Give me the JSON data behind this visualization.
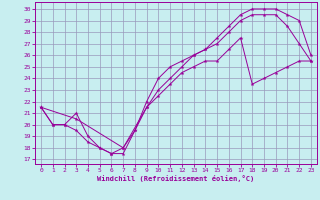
{
  "bg_color": "#c8eef0",
  "grid_color": "#9999bb",
  "line_color": "#990099",
  "xlabel": "Windchill (Refroidissement éolien,°C)",
  "xlim_min": -0.5,
  "xlim_max": 23.5,
  "ylim_min": 16.6,
  "ylim_max": 30.6,
  "xticks": [
    0,
    1,
    2,
    3,
    4,
    5,
    6,
    7,
    8,
    9,
    10,
    11,
    12,
    13,
    14,
    15,
    16,
    17,
    18,
    19,
    20,
    21,
    22,
    23
  ],
  "yticks": [
    17,
    18,
    19,
    20,
    21,
    22,
    23,
    24,
    25,
    26,
    27,
    28,
    29,
    30
  ],
  "line1_x": [
    0,
    1,
    2,
    3,
    4,
    5,
    6,
    7,
    8,
    9,
    10,
    11,
    12,
    13,
    14,
    15,
    16,
    17,
    18,
    19,
    20,
    21,
    22,
    23
  ],
  "line1_y": [
    21.5,
    20.0,
    20.0,
    19.5,
    18.5,
    18.0,
    17.5,
    17.5,
    19.5,
    22.0,
    24.0,
    25.0,
    25.5,
    26.0,
    26.5,
    27.5,
    28.5,
    29.5,
    30.0,
    30.0,
    30.0,
    29.5,
    29.0,
    26.0
  ],
  "line2_x": [
    0,
    1,
    2,
    3,
    4,
    5,
    6,
    7,
    8,
    9,
    10,
    11,
    12,
    13,
    14,
    15,
    16,
    17,
    18,
    19,
    20,
    21,
    22,
    23
  ],
  "line2_y": [
    21.5,
    20.0,
    20.0,
    21.0,
    19.0,
    18.0,
    17.5,
    18.0,
    19.5,
    21.5,
    23.0,
    24.0,
    25.0,
    26.0,
    26.5,
    27.0,
    28.0,
    29.0,
    29.5,
    29.5,
    29.5,
    28.5,
    27.0,
    25.5
  ],
  "line3_x": [
    0,
    3,
    7,
    9,
    10,
    11,
    12,
    13,
    14,
    15,
    16,
    17,
    18,
    19,
    20,
    21,
    22,
    23
  ],
  "line3_y": [
    21.5,
    20.5,
    18.0,
    21.5,
    22.5,
    23.5,
    24.5,
    25.0,
    25.5,
    25.5,
    26.5,
    27.5,
    23.5,
    24.0,
    24.5,
    25.0,
    25.5,
    25.5
  ]
}
